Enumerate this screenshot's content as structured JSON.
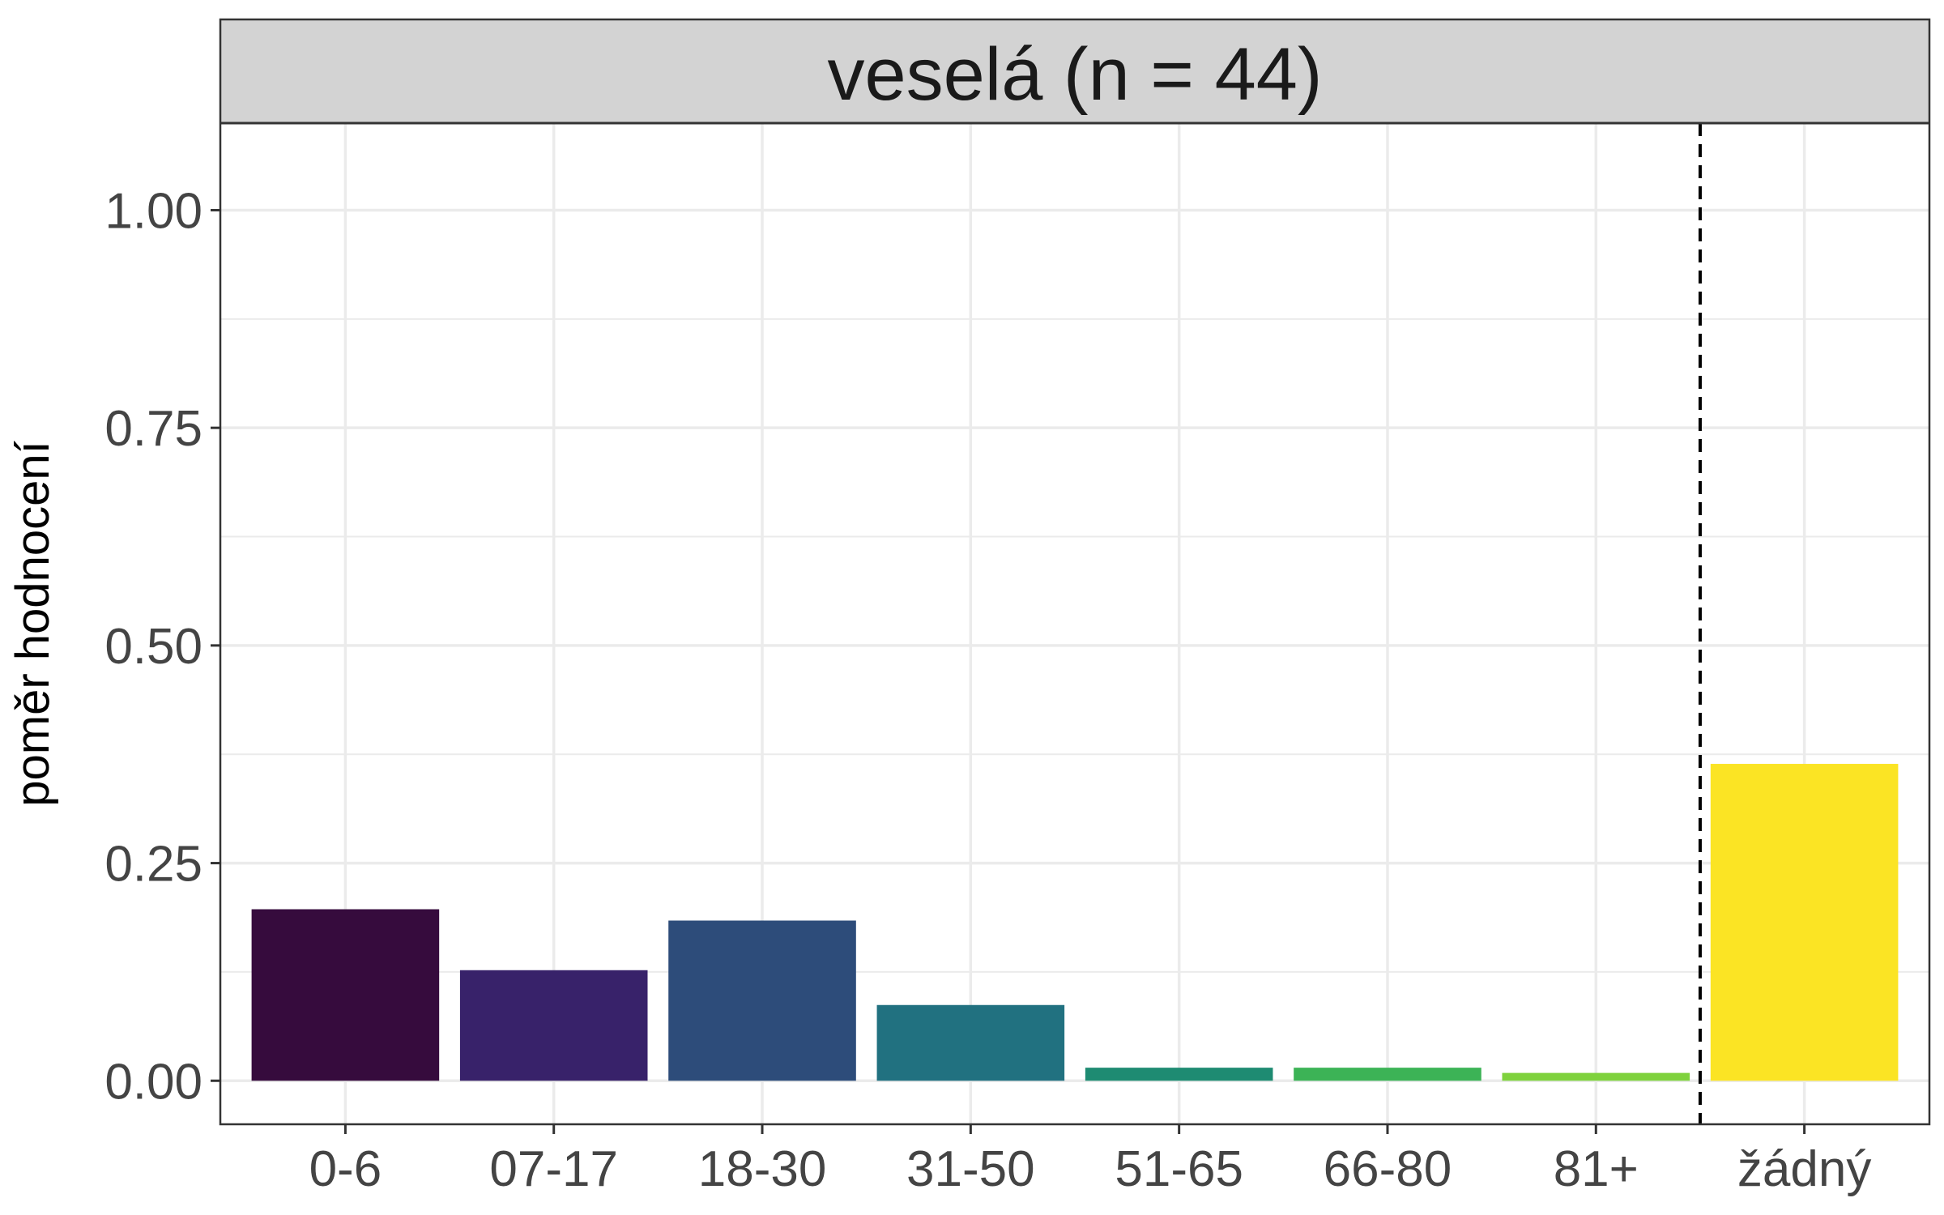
{
  "chart_data": {
    "type": "bar",
    "panel_title": "veselá (n = 44)",
    "ylabel": "poměr hodnocení",
    "xlabel": "",
    "categories": [
      "0-6",
      "07-17",
      "18-30",
      "31-50",
      "51-65",
      "66-80",
      "81+",
      "žádný"
    ],
    "values": [
      0.197,
      0.127,
      0.184,
      0.087,
      0.015,
      0.015,
      0.009,
      0.364
    ],
    "bar_colors": [
      "#360B3D",
      "#38226A",
      "#2D4C7A",
      "#217180",
      "#1E8B72",
      "#3CB356",
      "#7FD23D",
      "#FBE424"
    ],
    "ylim": [
      -0.05,
      1.1
    ],
    "yticks": [
      0.0,
      0.25,
      0.5,
      0.75,
      1.0
    ],
    "ytick_labels": [
      "0.00",
      "0.25",
      "0.50",
      "0.75",
      "1.00"
    ],
    "grid": true,
    "reference_line": {
      "between": [
        "81+",
        "žádný"
      ],
      "style": "dashed"
    },
    "theme_colors": {
      "strip_background": "#D3D3D3",
      "grid": "#EBEBEB",
      "panel_border": "#333333",
      "reference_line": "#000000"
    }
  }
}
